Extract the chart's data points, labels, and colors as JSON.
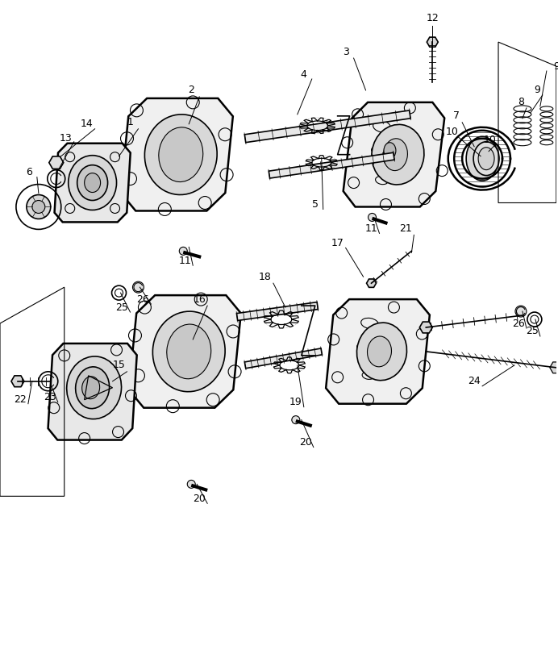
{
  "bg_color": "#ffffff",
  "line_color": "#000000",
  "figsize": [
    6.92,
    8.11
  ],
  "dpi": 100
}
